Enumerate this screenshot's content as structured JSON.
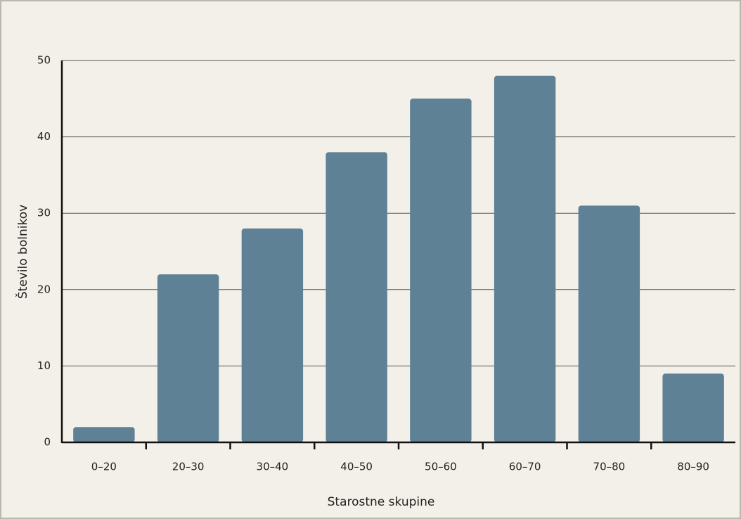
{
  "chart_data": {
    "type": "bar",
    "x_label": "Starostne skupine",
    "y_label": "Število bolnikov",
    "categories": [
      "0–20",
      "20–30",
      "30–40",
      "40–50",
      "50–60",
      "60–70",
      "70–80",
      "80–90"
    ],
    "values": [
      2,
      22,
      28,
      38,
      45,
      48,
      31,
      9
    ],
    "color": "#5f8196",
    "ylim": [
      0,
      50
    ],
    "yticks": [
      0,
      10,
      20,
      30,
      40,
      50
    ],
    "grid": true
  }
}
